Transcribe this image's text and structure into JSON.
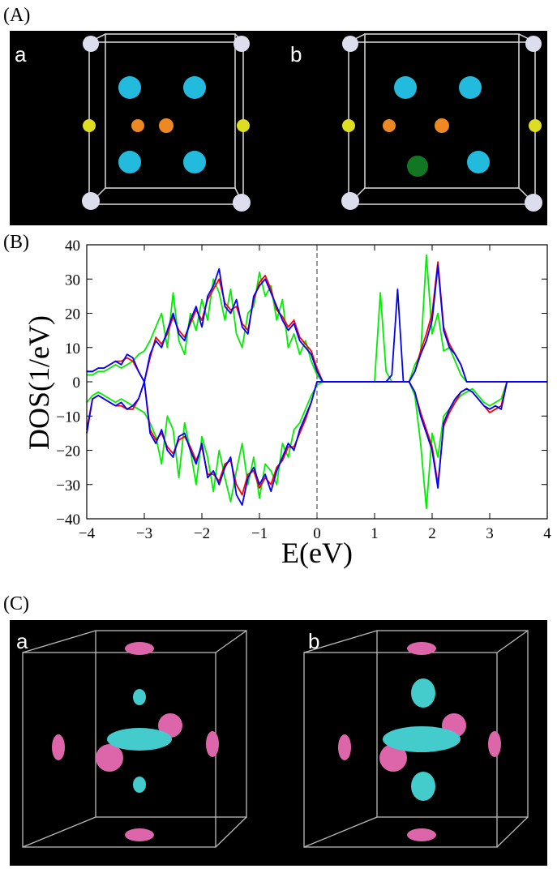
{
  "panels": {
    "A": {
      "label": "(A)",
      "subpanels": [
        "a",
        "b"
      ]
    },
    "B": {
      "label": "(B)"
    },
    "C": {
      "label": "(C)",
      "subpanels": [
        "a",
        "b"
      ]
    }
  },
  "chart_data": {
    "type": "line",
    "x_label": "E(eV)",
    "y_label": "DOS(1/eV)",
    "xlim": [
      -4,
      4
    ],
    "ylim": [
      -40,
      40
    ],
    "xticks": [
      {
        "value": -4,
        "label": "−4"
      },
      {
        "value": -3,
        "label": "−3"
      },
      {
        "value": -2,
        "label": "−2"
      },
      {
        "value": -1,
        "label": "−1"
      },
      0,
      1,
      2,
      3,
      4
    ],
    "yticks": [
      {
        "value": -40,
        "label": "−40"
      },
      {
        "value": -30,
        "label": "−30"
      },
      {
        "value": -20,
        "label": "−20"
      },
      {
        "value": -10,
        "label": "−10"
      },
      0,
      10,
      20,
      30,
      40
    ],
    "vline": {
      "x": 0,
      "style": "dashed",
      "color": "#555555"
    },
    "x": [
      -4.0,
      -3.9,
      -3.8,
      -3.7,
      -3.6,
      -3.5,
      -3.4,
      -3.3,
      -3.2,
      -3.1,
      -3.0,
      -2.9,
      -2.8,
      -2.7,
      -2.6,
      -2.5,
      -2.4,
      -2.3,
      -2.2,
      -2.1,
      -2.0,
      -1.9,
      -1.8,
      -1.7,
      -1.6,
      -1.5,
      -1.4,
      -1.3,
      -1.2,
      -1.1,
      -1.0,
      -0.9,
      -0.8,
      -0.7,
      -0.6,
      -0.5,
      -0.4,
      -0.3,
      -0.2,
      -0.1,
      0.0,
      0.1,
      0.2,
      0.3,
      0.4,
      0.5,
      0.6,
      0.7,
      0.8,
      0.9,
      1.0,
      1.1,
      1.2,
      1.3,
      1.4,
      1.5,
      1.6,
      1.7,
      1.8,
      1.9,
      2.0,
      2.1,
      2.2,
      2.3,
      2.4,
      2.5,
      2.6,
      2.7,
      2.8,
      2.9,
      3.0,
      3.1,
      3.2,
      3.3,
      3.4,
      3.5,
      3.6,
      3.7,
      3.8,
      3.9,
      4.0
    ],
    "series": [
      {
        "color": "#00ee00",
        "values": [
          2,
          2,
          3,
          3,
          4,
          5,
          4,
          5,
          6,
          8,
          9,
          12,
          16,
          20,
          10,
          26,
          12,
          8,
          20,
          15,
          24,
          18,
          30,
          26,
          18,
          27,
          14,
          10,
          20,
          22,
          32,
          25,
          28,
          18,
          24,
          10,
          14,
          8,
          12,
          6,
          2,
          0,
          0,
          0,
          0,
          0,
          0,
          0,
          0,
          0,
          0,
          26,
          3,
          0,
          0,
          0,
          0,
          5,
          8,
          37,
          14,
          20,
          9,
          10,
          6,
          2,
          0,
          0,
          0,
          0,
          0,
          0,
          0,
          0,
          0,
          0,
          0,
          0,
          0,
          0,
          0
        ]
      },
      {
        "color": "#00ee00",
        "values": [
          -6,
          -4,
          -3,
          -4,
          -5,
          -6,
          -5,
          -6,
          -7,
          -8,
          -9,
          -12,
          -16,
          -24,
          -10,
          -14,
          -28,
          -12,
          -20,
          -30,
          -16,
          -22,
          -32,
          -20,
          -28,
          -35,
          -26,
          -18,
          -30,
          -22,
          -34,
          -24,
          -26,
          -30,
          -18,
          -22,
          -14,
          -12,
          -8,
          -4,
          -1,
          0,
          0,
          0,
          0,
          0,
          0,
          0,
          0,
          0,
          0,
          0,
          0,
          0,
          0,
          0,
          0,
          -4,
          -18,
          -37,
          -15,
          -22,
          -10,
          -8,
          -6,
          -4,
          -3,
          -2,
          -4,
          -6,
          -7,
          -6,
          -5,
          0,
          0,
          0,
          0,
          0,
          0,
          0,
          0
        ]
      },
      {
        "color": "#ff0000",
        "values": [
          3,
          3,
          4,
          4,
          5,
          6,
          6,
          7,
          6,
          3,
          0,
          7,
          13,
          11,
          14,
          19,
          15,
          13,
          17,
          21,
          18,
          24,
          27,
          30,
          23,
          21,
          22,
          17,
          15,
          24,
          29,
          31,
          27,
          21,
          19,
          16,
          18,
          13,
          11,
          9,
          4,
          0,
          0,
          0,
          0,
          0,
          0,
          0,
          0,
          0,
          0,
          0,
          0,
          0,
          0,
          0,
          0,
          3,
          9,
          14,
          20,
          35,
          16,
          11,
          8,
          5,
          0,
          0,
          0,
          0,
          0,
          0,
          0,
          0,
          0,
          0,
          0,
          0,
          0,
          0,
          0
        ]
      },
      {
        "color": "#ff0000",
        "values": [
          -14,
          -5,
          -4,
          -5,
          -6,
          -7,
          -7,
          -8,
          -8,
          -5,
          0,
          -14,
          -17,
          -15,
          -19,
          -21,
          -17,
          -16,
          -19,
          -23,
          -19,
          -27,
          -27,
          -29,
          -24,
          -23,
          -30,
          -33,
          -27,
          -26,
          -31,
          -28,
          -30,
          -25,
          -23,
          -19,
          -19,
          -15,
          -11,
          -6,
          0,
          0,
          0,
          0,
          0,
          0,
          0,
          0,
          0,
          0,
          0,
          0,
          0,
          0,
          0,
          0,
          0,
          -3,
          -9,
          -14,
          -19,
          -30,
          -13,
          -9,
          -6,
          -3,
          -2,
          -3,
          -5,
          -7,
          -9,
          -8,
          -7,
          0,
          0,
          0,
          0,
          0,
          0,
          0,
          0
        ]
      },
      {
        "color": "#0000ff",
        "values": [
          3,
          3,
          4,
          4,
          5,
          6,
          5,
          8,
          7,
          3,
          0,
          8,
          12,
          10,
          15,
          20,
          14,
          12,
          18,
          22,
          16,
          25,
          28,
          33,
          22,
          20,
          24,
          16,
          14,
          25,
          28,
          30,
          26,
          22,
          18,
          15,
          17,
          12,
          10,
          8,
          3,
          0,
          0,
          0,
          0,
          0,
          0,
          0,
          0,
          0,
          0,
          0,
          0,
          2,
          27,
          0,
          0,
          3,
          8,
          12,
          18,
          34,
          15,
          10,
          8,
          5,
          0,
          0,
          0,
          0,
          0,
          0,
          0,
          0,
          0,
          0,
          0,
          0,
          0,
          0,
          0
        ]
      },
      {
        "color": "#0000ff",
        "values": [
          -15,
          -5,
          -4,
          -5,
          -6,
          -7,
          -6,
          -8,
          -7,
          -5,
          0,
          -15,
          -18,
          -14,
          -20,
          -22,
          -16,
          -15,
          -20,
          -24,
          -18,
          -28,
          -26,
          -30,
          -25,
          -22,
          -33,
          -36,
          -28,
          -25,
          -30,
          -27,
          -32,
          -26,
          -22,
          -18,
          -20,
          -14,
          -10,
          -6,
          0,
          0,
          0,
          0,
          0,
          0,
          0,
          0,
          0,
          0,
          0,
          0,
          0,
          0,
          0,
          0,
          0,
          -3,
          -10,
          -15,
          -20,
          -31,
          -12,
          -8,
          -5,
          -3,
          -2,
          -3,
          -5,
          -7,
          -8,
          -7,
          -8,
          0,
          0,
          0,
          0,
          0,
          0,
          0,
          0
        ]
      }
    ]
  }
}
